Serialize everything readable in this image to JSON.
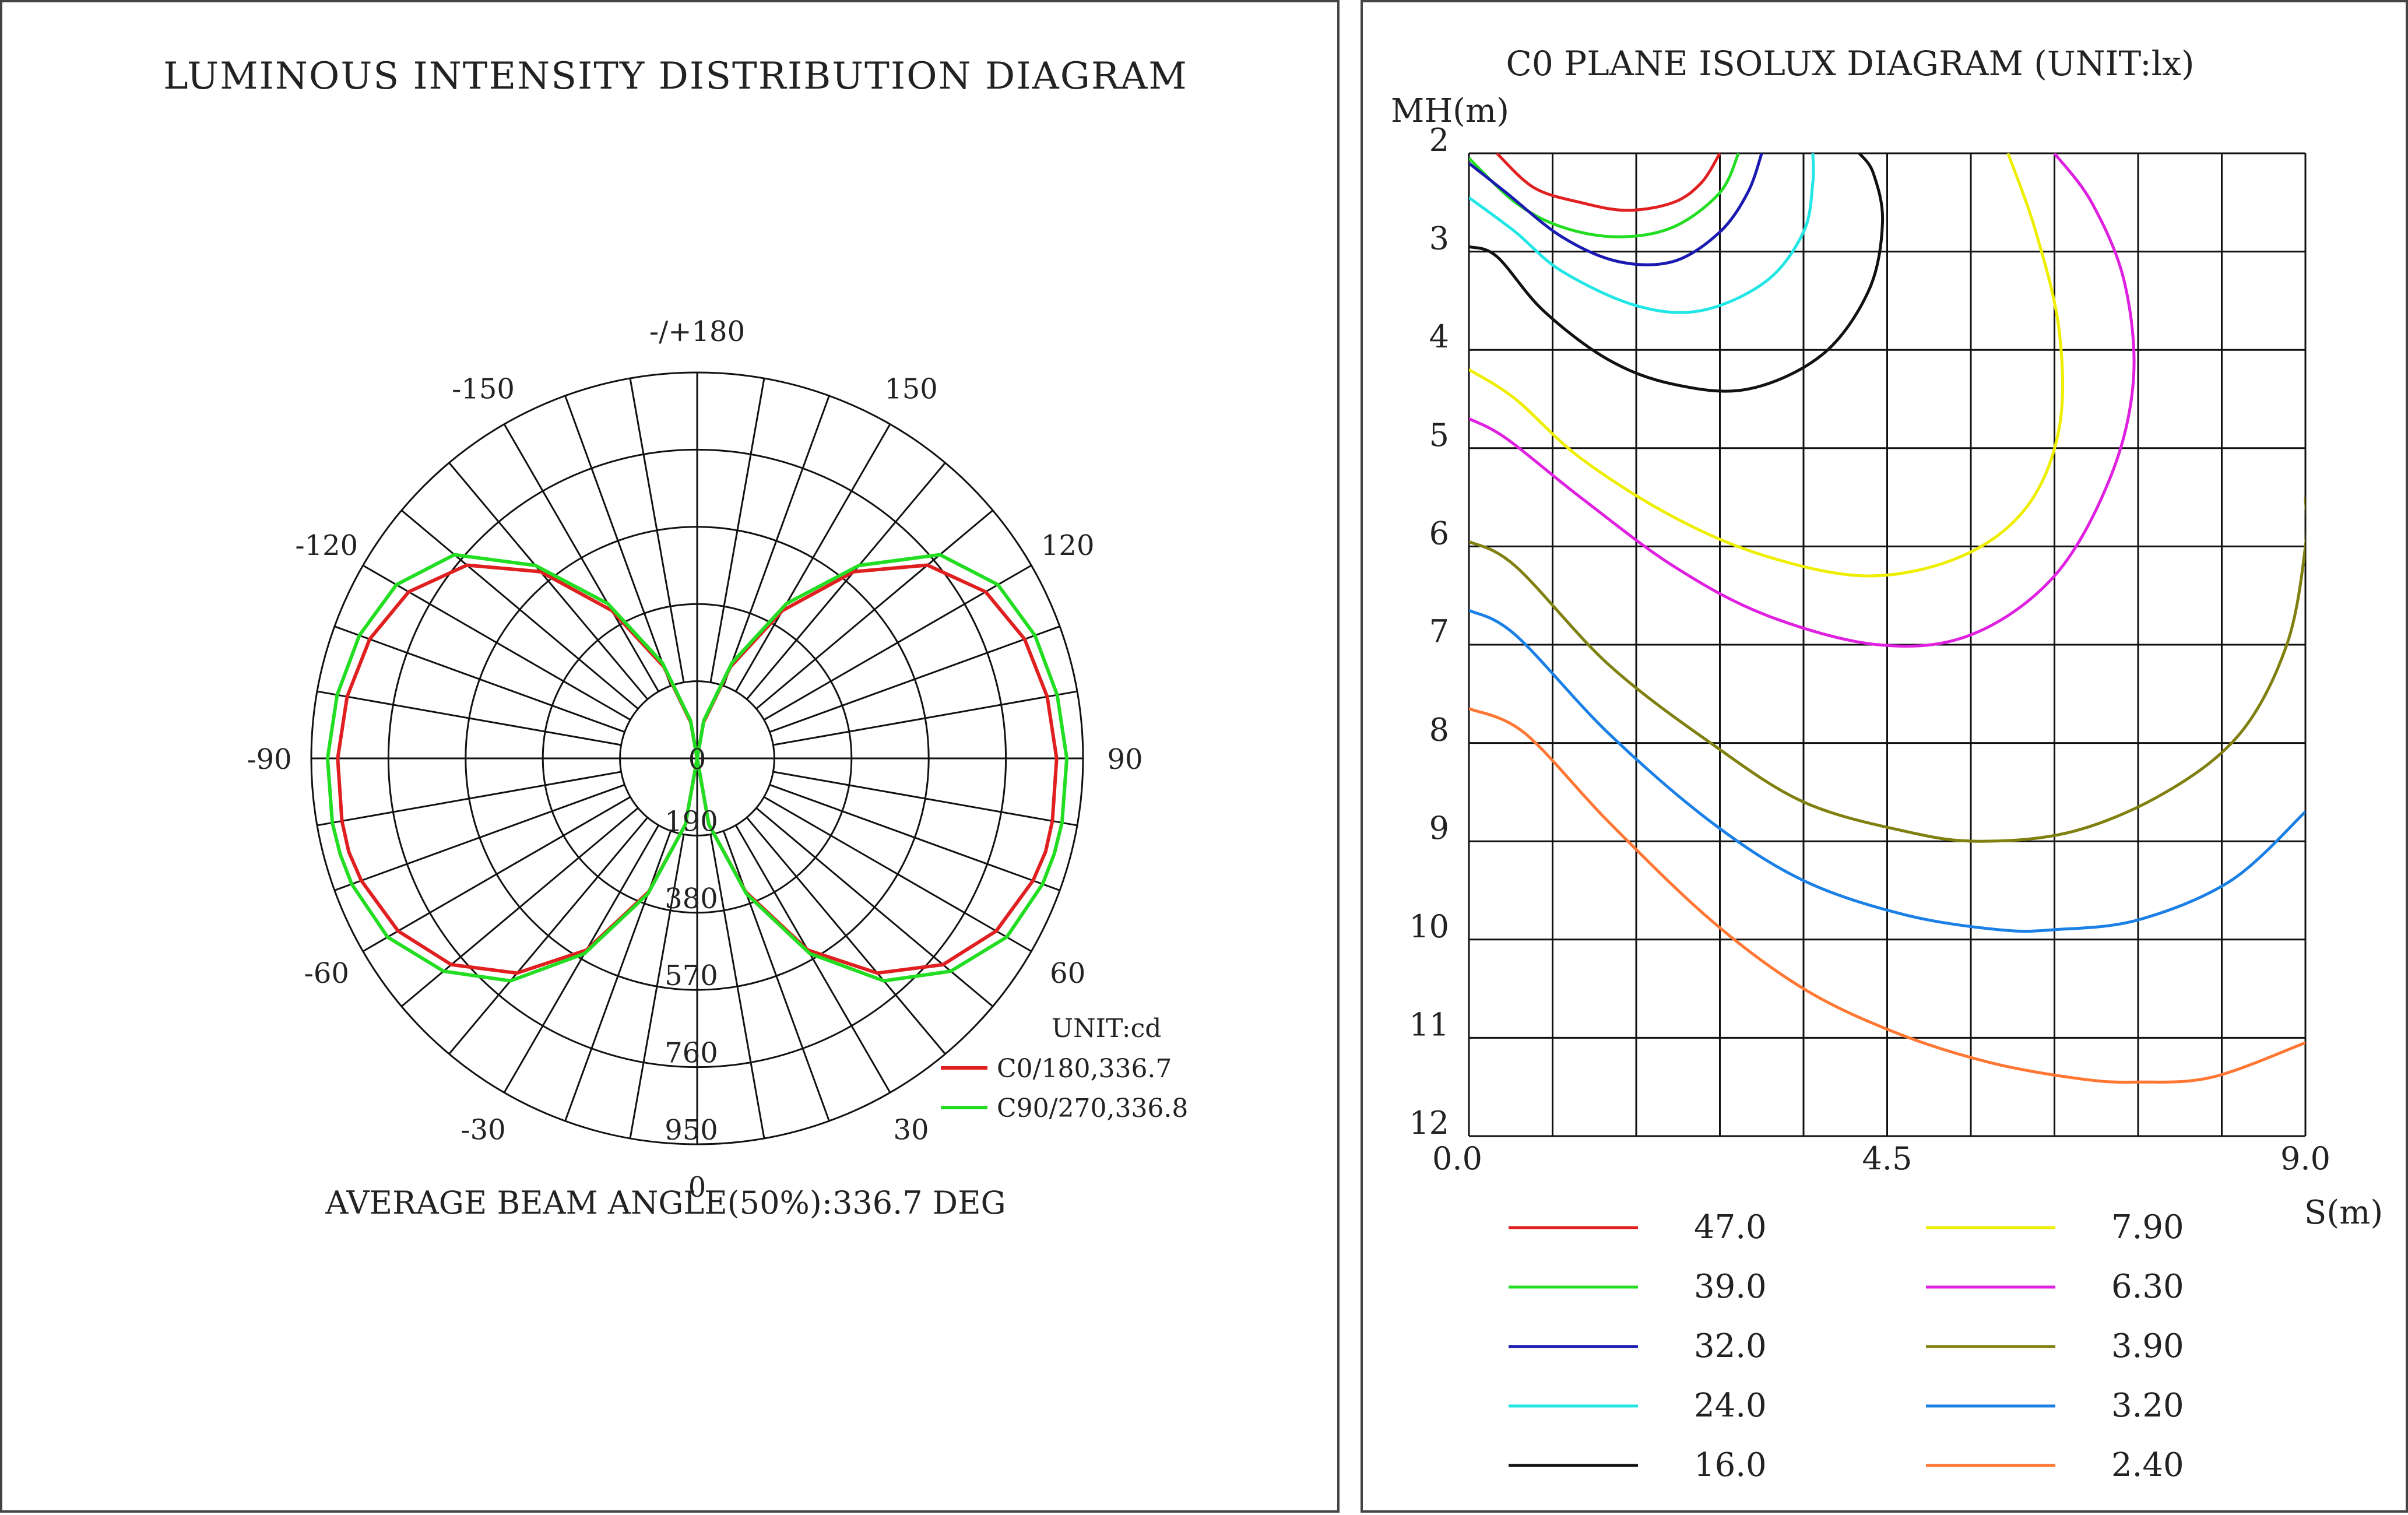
{
  "chart_data": [
    {
      "type": "polar",
      "title": "LUMINOUS INTENSITY DISTRIBUTION DIAGRAM",
      "angle_labels": [
        {
          "angle": 180,
          "text": "-/+180"
        },
        {
          "angle": 150,
          "text": "150"
        },
        {
          "angle": -150,
          "text": "-150"
        },
        {
          "angle": 120,
          "text": "120"
        },
        {
          "angle": -120,
          "text": "-120"
        },
        {
          "angle": 90,
          "text": "90"
        },
        {
          "angle": -90,
          "text": "-90"
        },
        {
          "angle": 60,
          "text": "60"
        },
        {
          "angle": -60,
          "text": "-60"
        },
        {
          "angle": 30,
          "text": "30"
        },
        {
          "angle": -30,
          "text": "-30"
        },
        {
          "angle": 0,
          "text": "0"
        }
      ],
      "center_label": "0",
      "radial_ticks": [
        {
          "value": 190,
          "text": "190"
        },
        {
          "value": 380,
          "text": "380"
        },
        {
          "value": 570,
          "text": "570"
        },
        {
          "value": 760,
          "text": "760"
        },
        {
          "value": 950,
          "text": "950"
        }
      ],
      "rmax": 950,
      "unit": "UNIT:cd",
      "series": [
        {
          "name": "C0/180,336.7",
          "color": "#e02020",
          "angles": [
            0,
            10,
            20,
            30,
            40,
            50,
            60,
            70,
            75,
            80,
            90,
            100,
            110,
            120,
            130,
            140,
            150,
            160,
            170,
            180
          ],
          "values": [
            0,
            165,
            350,
            545,
            690,
            790,
            850,
            880,
            888,
            888,
            885,
            875,
            858,
            820,
            740,
            600,
            420,
            240,
            90,
            0
          ]
        },
        {
          "name": "C90/270,336.8",
          "color": "#22dd22",
          "angles": [
            0,
            10,
            20,
            30,
            40,
            50,
            60,
            70,
            75,
            80,
            90,
            100,
            110,
            120,
            130,
            140,
            150,
            160,
            170,
            180
          ],
          "values": [
            0,
            165,
            355,
            555,
            715,
            815,
            880,
            905,
            910,
            912,
            910,
            900,
            885,
            855,
            780,
            620,
            440,
            250,
            95,
            0
          ]
        }
      ],
      "footer": "AVERAGE BEAM ANGLE(50%):336.7 DEG"
    },
    {
      "type": "line",
      "subtype": "isolux contour",
      "title": "C0 PLANE ISOLUX DIAGRAM (UNIT:lx)",
      "ylabel": "MH(m)",
      "xlabel": "S(m)",
      "xlim": [
        0,
        9
      ],
      "ylim": [
        2,
        12
      ],
      "y_inverted": true,
      "x_tick_labels": [
        "0.0",
        "4.5",
        "9.0"
      ],
      "y_tick_labels": [
        "2",
        "3",
        "4",
        "5",
        "6",
        "7",
        "8",
        "9",
        "10",
        "11",
        "12"
      ],
      "grid": true,
      "legend_position": "bottom",
      "series": [
        {
          "name": "47.0",
          "color": "#e02020",
          "points": [
            [
              0.3,
              2.0
            ],
            [
              0.7,
              2.35
            ],
            [
              1.2,
              2.5
            ],
            [
              1.7,
              2.58
            ],
            [
              2.2,
              2.5
            ],
            [
              2.5,
              2.3
            ],
            [
              2.7,
              2.0
            ]
          ]
        },
        {
          "name": "39.0",
          "color": "#22dd22",
          "points": [
            [
              0,
              2.05
            ],
            [
              0.5,
              2.5
            ],
            [
              1.0,
              2.75
            ],
            [
              1.6,
              2.85
            ],
            [
              2.2,
              2.75
            ],
            [
              2.7,
              2.4
            ],
            [
              2.9,
              2.0
            ]
          ]
        },
        {
          "name": "32.0",
          "color": "#1a1ab0",
          "points": [
            [
              0,
              2.1
            ],
            [
              0.4,
              2.4
            ],
            [
              1.0,
              2.85
            ],
            [
              1.6,
              3.1
            ],
            [
              2.2,
              3.1
            ],
            [
              2.7,
              2.8
            ],
            [
              3.0,
              2.4
            ],
            [
              3.15,
              2.0
            ]
          ]
        },
        {
          "name": "24.0",
          "color": "#22e6e6",
          "points": [
            [
              0,
              2.45
            ],
            [
              0.5,
              2.8
            ],
            [
              1.0,
              3.2
            ],
            [
              1.8,
              3.55
            ],
            [
              2.5,
              3.6
            ],
            [
              3.2,
              3.3
            ],
            [
              3.6,
              2.8
            ],
            [
              3.7,
              2.3
            ],
            [
              3.7,
              2.0
            ]
          ]
        },
        {
          "name": "16.0",
          "color": "#111111",
          "points": [
            [
              0,
              2.95
            ],
            [
              0.3,
              3.05
            ],
            [
              0.8,
              3.6
            ],
            [
              1.5,
              4.1
            ],
            [
              2.2,
              4.35
            ],
            [
              3.0,
              4.4
            ],
            [
              3.8,
              4.05
            ],
            [
              4.3,
              3.4
            ],
            [
              4.45,
              2.7
            ],
            [
              4.35,
              2.2
            ],
            [
              4.2,
              2.0
            ]
          ]
        },
        {
          "name": "7.90",
          "color": "#eeee00",
          "points": [
            [
              0,
              4.2
            ],
            [
              0.5,
              4.5
            ],
            [
              1.2,
              5.1
            ],
            [
              2.2,
              5.7
            ],
            [
              3.2,
              6.1
            ],
            [
              4.3,
              6.3
            ],
            [
              5.3,
              6.1
            ],
            [
              6.0,
              5.6
            ],
            [
              6.35,
              4.8
            ],
            [
              6.35,
              3.8
            ],
            [
              6.1,
              2.8
            ],
            [
              5.8,
              2.0
            ]
          ]
        },
        {
          "name": "6.30",
          "color": "#e020e0",
          "points": [
            [
              0,
              4.7
            ],
            [
              0.4,
              4.9
            ],
            [
              1.2,
              5.5
            ],
            [
              2.2,
              6.2
            ],
            [
              3.2,
              6.7
            ],
            [
              4.4,
              7.0
            ],
            [
              5.4,
              6.9
            ],
            [
              6.3,
              6.3
            ],
            [
              6.9,
              5.3
            ],
            [
              7.15,
              4.3
            ],
            [
              7.05,
              3.3
            ],
            [
              6.7,
              2.5
            ],
            [
              6.3,
              2.0
            ]
          ]
        },
        {
          "name": "3.90",
          "color": "#808010",
          "points": [
            [
              0,
              5.95
            ],
            [
              0.5,
              6.2
            ],
            [
              1.5,
              7.2
            ],
            [
              2.6,
              8.0
            ],
            [
              3.6,
              8.6
            ],
            [
              4.7,
              8.9
            ],
            [
              5.5,
              9.0
            ],
            [
              6.5,
              8.9
            ],
            [
              7.5,
              8.5
            ],
            [
              8.3,
              7.9
            ],
            [
              8.8,
              7.0
            ],
            [
              9.0,
              6.0
            ],
            [
              9.0,
              5.5
            ]
          ]
        },
        {
          "name": "3.20",
          "color": "#1a80e6",
          "points": [
            [
              0,
              6.65
            ],
            [
              0.5,
              6.9
            ],
            [
              1.5,
              7.9
            ],
            [
              2.6,
              8.8
            ],
            [
              3.6,
              9.4
            ],
            [
              4.7,
              9.75
            ],
            [
              5.7,
              9.9
            ],
            [
              6.3,
              9.9
            ],
            [
              7.2,
              9.8
            ],
            [
              8.2,
              9.4
            ],
            [
              9.0,
              8.7
            ]
          ]
        },
        {
          "name": "2.40",
          "color": "#ff7733",
          "points": [
            [
              0,
              7.65
            ],
            [
              0.6,
              7.9
            ],
            [
              1.5,
              8.8
            ],
            [
              2.6,
              9.8
            ],
            [
              3.6,
              10.5
            ],
            [
              4.6,
              10.95
            ],
            [
              5.6,
              11.25
            ],
            [
              6.6,
              11.42
            ],
            [
              7.2,
              11.45
            ],
            [
              8.0,
              11.4
            ],
            [
              9.0,
              11.05
            ]
          ]
        }
      ]
    }
  ]
}
